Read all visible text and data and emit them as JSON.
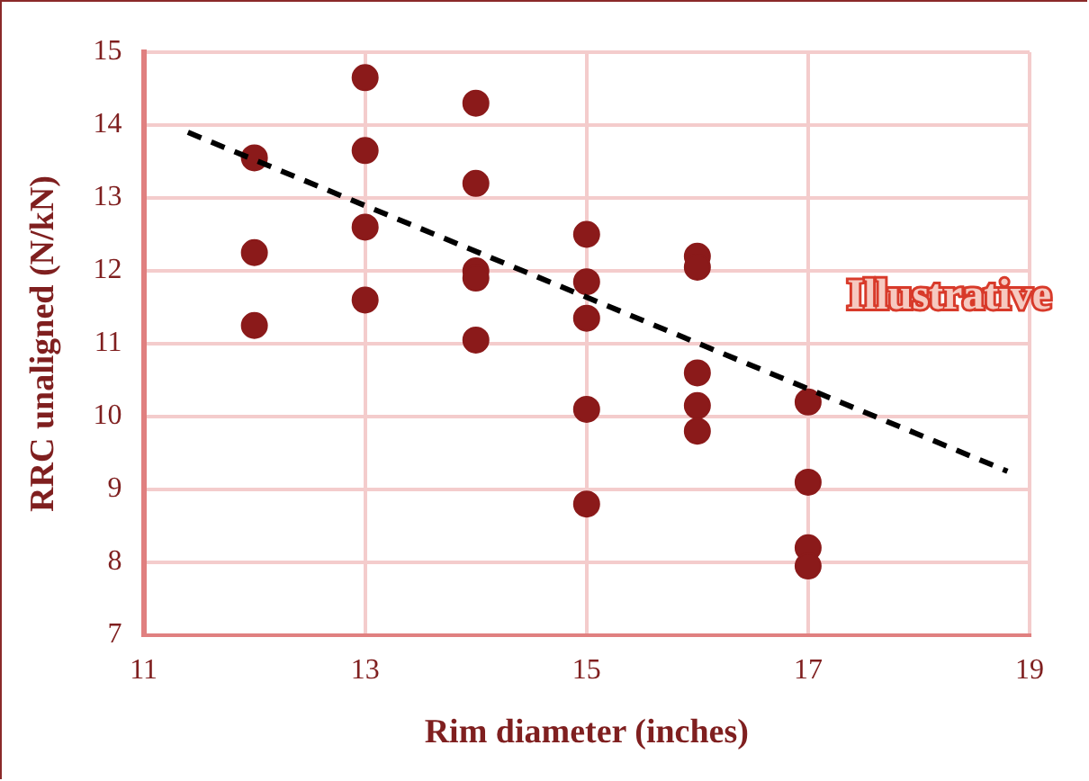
{
  "chart_data": {
    "type": "scatter",
    "xlabel": "Rim diameter (inches)",
    "ylabel": "RRC unaligned (N/kN)",
    "xlim": [
      11,
      19
    ],
    "xticks": [
      11,
      13,
      15,
      17,
      19
    ],
    "ylim": [
      7,
      15
    ],
    "yticks": [
      7,
      8,
      9,
      10,
      11,
      12,
      13,
      14,
      15
    ],
    "grid": true,
    "legend": false,
    "marker": "circle",
    "annotations": [
      "Illustrative"
    ],
    "series": [
      {
        "color": "#8b1a1a",
        "x": [
          12,
          12,
          12,
          13,
          13,
          13,
          13,
          14,
          14,
          14,
          14,
          14,
          15,
          15,
          15,
          15,
          15,
          16,
          16,
          16,
          16,
          16,
          17,
          17,
          17,
          17
        ],
        "values": [
          13.55,
          12.25,
          11.25,
          14.65,
          13.65,
          12.6,
          11.6,
          14.3,
          13.2,
          12.0,
          11.9,
          11.05,
          12.5,
          11.85,
          11.35,
          10.1,
          8.8,
          12.2,
          12.05,
          10.6,
          10.15,
          9.8,
          10.2,
          9.1,
          8.2,
          7.95
        ]
      },
      {
        "type": "line",
        "color": "#000000",
        "line_style": "dashed",
        "marker": "none",
        "x": [
          11.4,
          18.8
        ],
        "values": [
          13.9,
          9.25
        ]
      }
    ]
  }
}
